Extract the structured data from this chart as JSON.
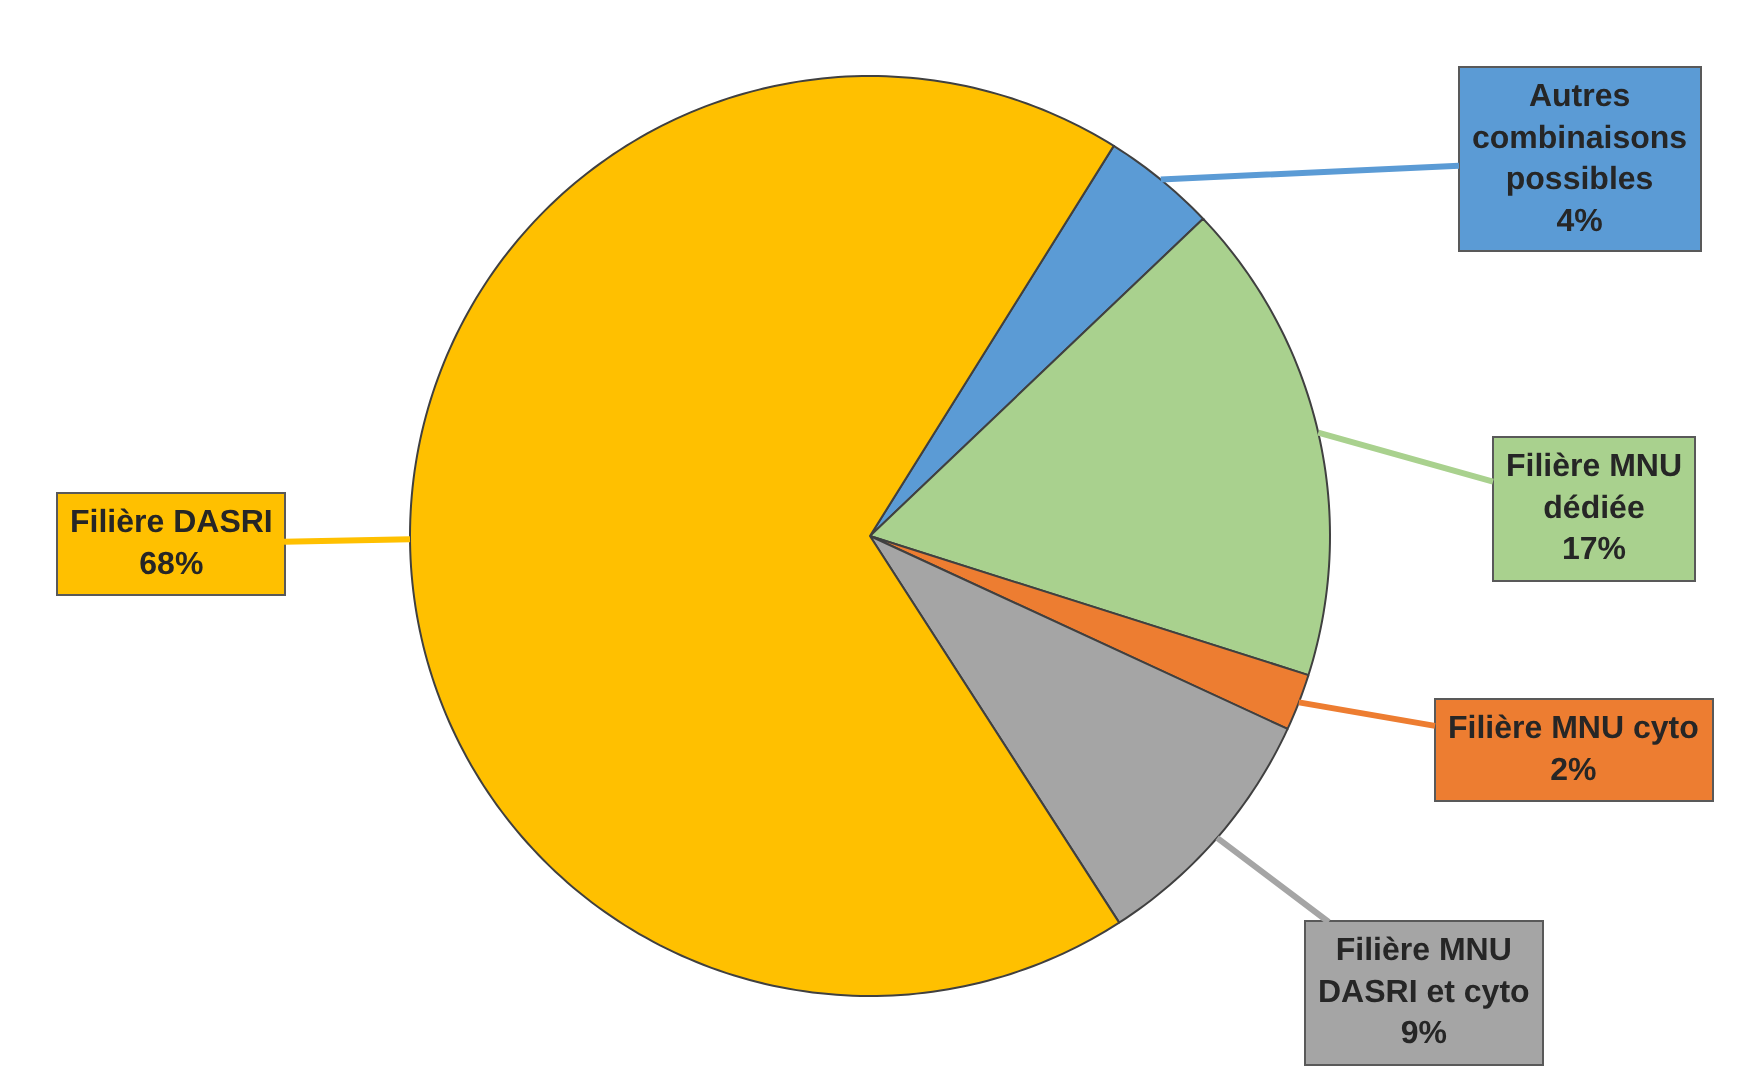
{
  "chart_data": {
    "type": "pie",
    "categories": [
      "Autres combinaisons possibles",
      "Filière MNU dédiée",
      "Filière MNU cyto",
      "Filière MNU DASRI et cyto",
      "Filière DASRI"
    ],
    "values": [
      4,
      17,
      2,
      9,
      68
    ],
    "value_labels": [
      "4%",
      "17%",
      "2%",
      "9%",
      "68%"
    ],
    "colors": [
      "#5b9bd5",
      "#a9d18e",
      "#ed7d31",
      "#a5a5a5",
      "#ffc000"
    ],
    "legend": false
  }
}
